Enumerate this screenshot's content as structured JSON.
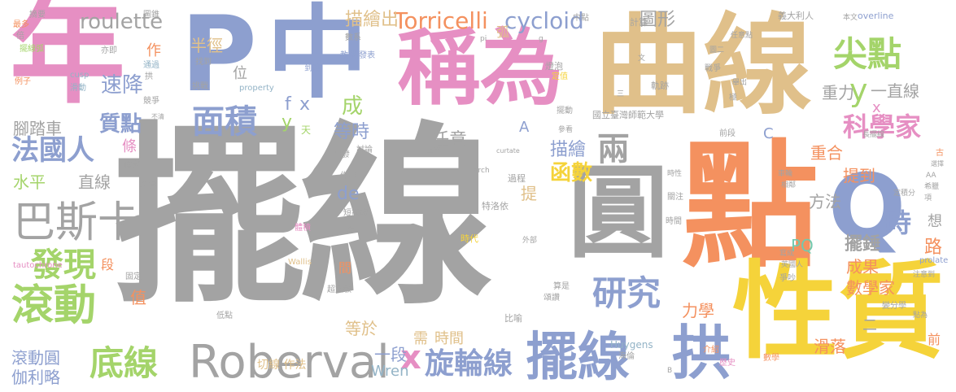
{
  "palette": {
    "gray": "#a3a3a3",
    "tan": "#e0c08a",
    "orange": "#f4915f",
    "blue": "#8d9fcf",
    "pink": "#e68fc3",
    "green": "#a4d46a",
    "yellow": "#f5d33a",
    "steel": "#93b3c6",
    "teal": "#72c9ae"
  },
  "words": {
    "w_baixian": "擺線",
    "w_quxian": "曲線",
    "w_dian": "點",
    "w_nian": "年",
    "w_P": "P",
    "w_zhong": "中",
    "w_chengwei": "稱為",
    "w_xingzhi": "性質",
    "w_yuan": "圓",
    "w_Q": "Q",
    "w_Roberval": "Roberval",
    "w_baixian2": "擺線",
    "w_gong": "拱",
    "w_gundong": "滾動",
    "w_dixian": "底線",
    "w_bashika": "巴斯卡",
    "w_faguoren": "法國人",
    "w_jiandian": "尖點",
    "w_mianji": "面積",
    "w_roulette": "roulette",
    "w_Torricelli": "Torricelli",
    "w_cycloid": "cycloid",
    "w_yanjiu": "研究",
    "w_xuanlunxian": "旋輪線",
    "w_x_big": "x",
    "w_liang": "兩",
    "w_kexuejia": "科學家",
    "w_faxian": "發現",
    "w_gundongyuan": "滾動圓",
    "w_jialilue": "伽利略",
    "w_shuiping": "水平",
    "w_zhixian": "直線",
    "w_jiaotache": "腳踏車",
    "w_zhidian": "質點",
    "w_susjiang": "速降",
    "w_banjing": "半徑",
    "w_miaohuichu": "描繪出",
    "w_tuxing": "圖形",
    "w_yizhixian": "一直線",
    "w_y_a": "y",
    "w_x_a": "x",
    "w_zhongli": "重力",
    "w_shi": "時",
    "w_tidao": "提到",
    "w_chonghe": "重合",
    "w_fangfa": "方法",
    "w_baichui": "擺錘",
    "w_chengguo": "成果",
    "w_shuxuejia": "數學家",
    "w_hanshu": "函數",
    "w_miaohui": "描繪",
    "w_renyi": "任意",
    "w_dengshi": "等時",
    "w_cheng": "成",
    "w_wei": "位",
    "w_f": "f",
    "w_x_s": "x",
    "w_y_s": "y",
    "w_de": "de",
    "w_lixue": "力學",
    "w_dengyu": "等於",
    "w_yiduan": "一段",
    "w_xu": "需",
    "w_shijian": "時間",
    "w_huaduo": "滑落",
    "w_PQ": "PQ",
    "w_lu": "路",
    "w_xiang": "想",
    "w_Wren": "Wren",
    "w_C": "C",
    "w_A": "A",
    "w_ti": "提",
    "w_hu": "弧",
    "w_zhi": "值",
    "w_duan": "段",
    "w_zuo": "作",
    "w_tiao": "條",
    "w_jian": "間",
    "w_er": "二",
    "w_qian": "前",
    "w_qieshiwen": "切線 作法",
    "w_tianshu": "天",
    "w_xuechuan": "學",
    "w_huygens": "Huygens",
    "w_wallis": "Wallis",
    "w_tautochrone": "tautochrone",
    "w_overline": "overline",
    "w_prolate": "prolate",
    "w_curtate": "curtate",
    "w_cusp": "cusp",
    "w_property": "property",
    "w_arch": "arch",
    "w_pi": "pi",
    "w_g": "g",
    "w_B": "B",
    "w_AA": "AA",
    "w_tehluoyi": "特洛依",
    "w_guoli": "國立臺灣師範大學",
    "w_jinzhen": "精確",
    "w_jiaoshou": "教授 發表",
    "w_daoda": "到達",
    "w_zhaodao": "找到",
    "w_dengpao": "燈泡",
    "w_dingzhi": "定值",
    "w_guiji": "軌跡",
    "w_jisuan": "計算",
    "w_zhongdian": "中點",
    "w_shuxi": "數系",
    "w_tuoyuan": "圖錐",
    "w_zhaiyao": "摘要",
    "w_yidalieren": "義大利人",
    "w_benwen": "本文",
    "w_zuiduo": "最多",
    "w_bei": "倍",
    "w_baixianhu": "擺線弧",
    "w_yiji": "亦即",
    "w_tongguo": "通過",
    "w_gong2": "拱",
    "w_lizi": "例子",
    "w_huadong": "滑動",
    "w_jingzheng": "競爭",
    "w_tiaozhan": "挑戰",
    "w_bujiao": "不清",
    "w_dundun": "倫敦",
    "w_suode": "所得",
    "w_shangdi": "上帝",
    "w_chufa": "出發",
    "w_taolun": "討論",
    "w_zuoyong": "作用",
    "w_guocheng": "過程",
    "w_baidong": "擺動",
    "w_canjiao": "參看",
    "w_shidai": "時代",
    "w_waibu": "外部",
    "w_tiji": "體積",
    "w_duanbaixian": "短擺線",
    "w_hanjing": "含",
    "w_guding": "固定",
    "w_dichu": "低點",
    "w_chaowenmin": "超文敏",
    "w_jingao": "頌讚",
    "w_suanshi": "算是",
    "w_hailun": "海倫",
    "w_bihu": "比喻",
    "w_jieshao": "介紹",
    "w_lishi": "歷史",
    "w_shuxue": "數學",
    "w_bianfenxue": "變分學",
    "w_zhengchao": "爭吵",
    "w_yingguoren": "英國人",
    "w_xiexcheng": "寫成",
    "w_xianglin": "相鄰",
    "w_chelun": "車輪",
    "w_guanzhu": "關注",
    "w_shijian2": "時間",
    "w_dingjifen": "定積分",
    "w_dingzhi2": "倒置",
    "w_xila": "希臘",
    "w_xiang2": "項",
    "w_zhuyidian": "注意到",
    "w_dianwei": "點為",
    "w_gu": "古",
    "w_xuanze": "選擇",
    "w_zhangbaixian": "長擺線",
    "w_qianduan": "前段",
    "w_jiang": "極",
    "w_juqi": "舉出",
    "w_zhanzheng": "戰爭",
    "w_renyidian": "任意點",
    "w_wen": "文",
    "w_tuer": "圖二",
    "w_san": "三",
    "w_shishi": "時性",
    "w_fanshu": "反數",
    "w_zhongxin": "中心",
    "w_kongjian": "空間"
  }
}
